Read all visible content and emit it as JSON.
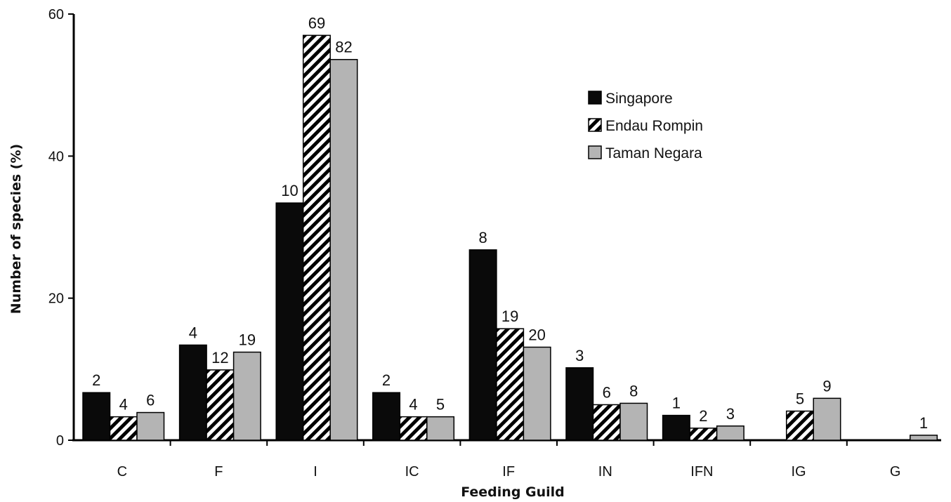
{
  "chart_data": {
    "type": "bar",
    "title": "",
    "xlabel": "Feeding Guild",
    "ylabel": "Number of species (%)",
    "ylim": [
      0,
      60
    ],
    "yticks": [
      0,
      20,
      40,
      60
    ],
    "grid": false,
    "legend_position": "top-right",
    "categories": [
      "C",
      "F",
      "I",
      "IC",
      "IF",
      "IN",
      "IFN",
      "IG",
      "G"
    ],
    "series": [
      {
        "name": "Singapore",
        "pattern": "solid-black",
        "color": "#0a0a0a",
        "values": [
          6.7,
          13.4,
          33.4,
          6.7,
          26.8,
          10.2,
          3.5,
          0,
          0
        ],
        "labels": [
          "2",
          "4",
          "10",
          "2",
          "8",
          "3",
          "1",
          "",
          ""
        ]
      },
      {
        "name": "Endau Rompin",
        "pattern": "diagonal-hatch",
        "color": "#000000",
        "values": [
          3.3,
          9.9,
          57.0,
          3.3,
          15.7,
          5.0,
          1.7,
          4.1,
          0
        ],
        "labels": [
          "4",
          "12",
          "69",
          "4",
          "19",
          "6",
          "2",
          "5",
          ""
        ]
      },
      {
        "name": "Taman Negara",
        "pattern": "solid-grey",
        "color": "#b4b4b4",
        "values": [
          3.9,
          12.4,
          53.6,
          3.3,
          13.1,
          5.2,
          2.0,
          5.9,
          0.7
        ],
        "labels": [
          "6",
          "19",
          "82",
          "5",
          "20",
          "8",
          "3",
          "9",
          "1"
        ]
      }
    ]
  }
}
